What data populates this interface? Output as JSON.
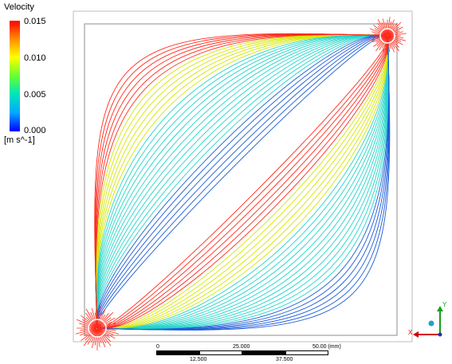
{
  "legend": {
    "title": "Velocity",
    "ticks": [
      "0.015",
      "0.010",
      "0.005",
      "0.000"
    ],
    "unit": "[m s^-1]",
    "colors": [
      "#ff0000",
      "#ffff00",
      "#00e6b8",
      "#0000ff"
    ]
  },
  "scale": {
    "top_labels": [
      "0",
      "25.000",
      "50.00 (mm)"
    ],
    "bottom_labels": [
      "12.500",
      "37.500"
    ]
  },
  "axes": {
    "x": "X",
    "y": "Y"
  },
  "flow": {
    "sources": [
      "inlet-top-right",
      "outlet-bottom-left"
    ],
    "colors": {
      "fast": "#ff2a1a",
      "medium": "#d4e600",
      "slow": "#22d4c8",
      "very_slow": "#1a5ad8"
    }
  }
}
